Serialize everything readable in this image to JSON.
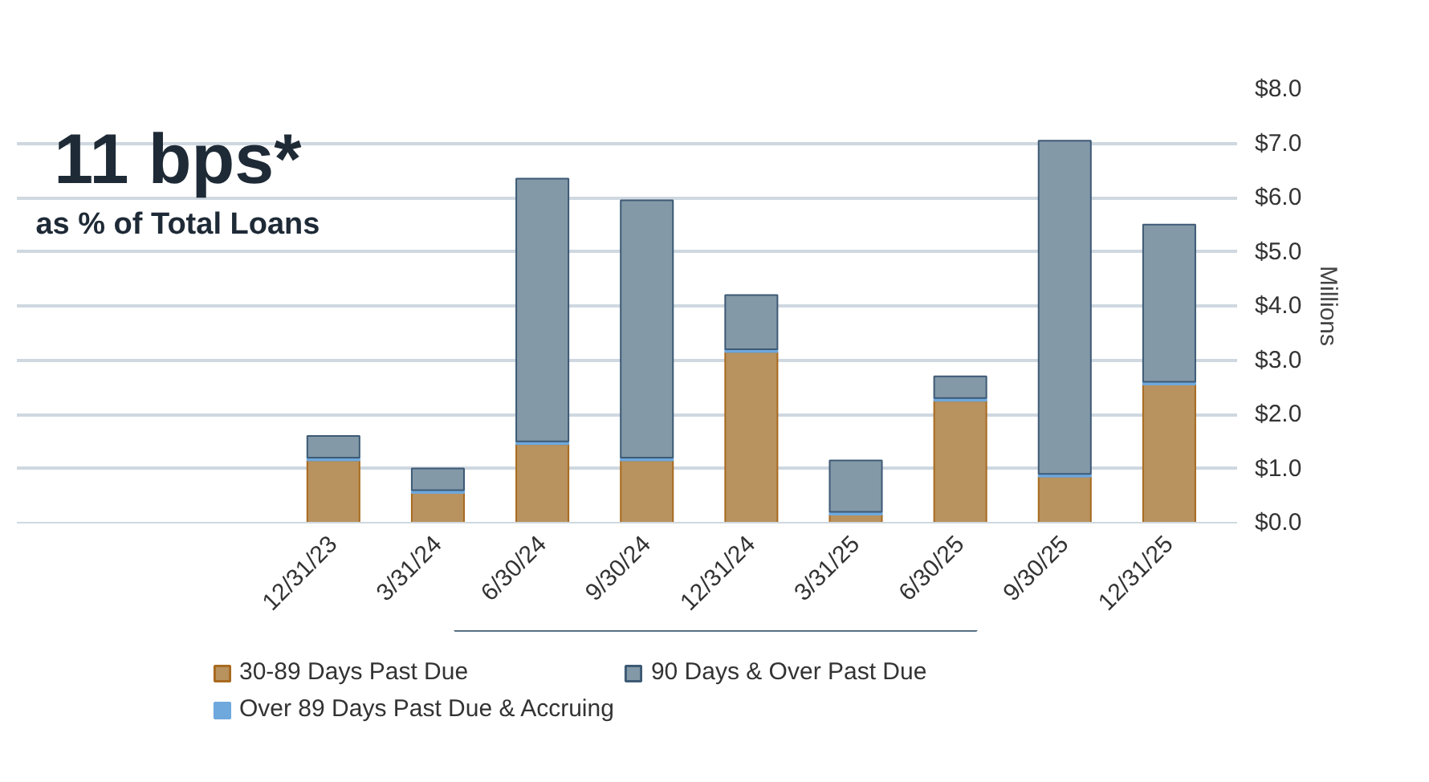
{
  "chart_data": {
    "type": "bar",
    "stacked": true,
    "categories": [
      "12/31/23",
      "3/31/24",
      "6/30/24",
      "9/30/24",
      "12/31/24",
      "3/31/25",
      "6/30/25",
      "9/30/25",
      "12/31/25"
    ],
    "series": [
      {
        "name": "30-89 Days Past Due",
        "color": "#b8925f",
        "values": [
          1.15,
          0.55,
          1.45,
          1.15,
          3.15,
          0.15,
          2.25,
          0.85,
          2.55
        ]
      },
      {
        "name": "Over 89 Days Past Due & Accruing",
        "color": "#6fa8dc",
        "values": [
          0.05,
          0.05,
          0.05,
          0.05,
          0.05,
          0.05,
          0.05,
          0.05,
          0.05
        ]
      },
      {
        "name": "90 Days & Over Past Due",
        "color": "#8499a8",
        "values": [
          0.4,
          0.4,
          4.85,
          4.75,
          1.0,
          0.95,
          0.4,
          6.15,
          2.9
        ]
      }
    ],
    "ylabel": "Millions",
    "ylim": [
      0,
      8
    ],
    "yticks": [
      {
        "value": 0,
        "label": "$0.0"
      },
      {
        "value": 1,
        "label": "$1.0"
      },
      {
        "value": 2,
        "label": "$2.0"
      },
      {
        "value": 3,
        "label": "$3.0"
      },
      {
        "value": 4,
        "label": "$4.0"
      },
      {
        "value": 5,
        "label": "$5.0"
      },
      {
        "value": 6,
        "label": "$6.0"
      },
      {
        "value": 7,
        "label": "$7.0"
      },
      {
        "value": 8,
        "label": "$8.0"
      }
    ],
    "annotations": [
      "11 bps*",
      "as % of Total Loans"
    ],
    "grid": "y",
    "legend": "bottom"
  }
}
